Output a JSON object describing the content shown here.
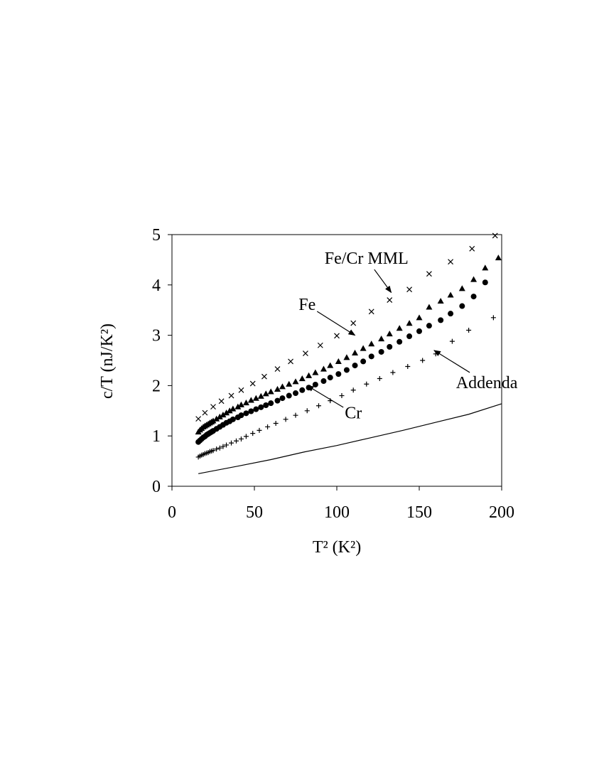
{
  "chart_data": {
    "type": "scatter",
    "title": "",
    "xlabel": "T² (K²)",
    "ylabel": "c/T (nJ/K²)",
    "xlim": [
      0,
      200
    ],
    "ylim": [
      0,
      5
    ],
    "xticks": [
      "0",
      "50",
      "100",
      "150",
      "200"
    ],
    "yticks": [
      "0",
      "1",
      "2",
      "3",
      "4",
      "5"
    ],
    "grid": false,
    "legend": "none",
    "series": [
      {
        "name": "Fe/Cr MML",
        "marker": "x",
        "x": [
          16,
          20,
          25,
          30,
          36,
          42,
          49,
          56,
          64,
          72,
          81,
          90,
          100,
          110,
          121,
          132,
          144,
          156,
          169,
          182,
          196
        ],
        "y": [
          1.34,
          1.46,
          1.58,
          1.69,
          1.8,
          1.91,
          2.04,
          2.18,
          2.33,
          2.48,
          2.64,
          2.8,
          2.99,
          3.24,
          3.47,
          3.7,
          3.91,
          4.22,
          4.46,
          4.72,
          4.98
        ]
      },
      {
        "name": "Fe",
        "marker": "triangle",
        "x": [
          16,
          17,
          18,
          19,
          20,
          21,
          22,
          23,
          24,
          25,
          27,
          29,
          31,
          33,
          35,
          37,
          40,
          42,
          45,
          48,
          51,
          54,
          57,
          60,
          64,
          67,
          71,
          75,
          79,
          83,
          87,
          92,
          96,
          101,
          106,
          111,
          116,
          121,
          127,
          132,
          138,
          144,
          150,
          156,
          163,
          169,
          176,
          183,
          190,
          198
        ],
        "y": [
          1.08,
          1.12,
          1.15,
          1.18,
          1.2,
          1.22,
          1.24,
          1.26,
          1.28,
          1.3,
          1.34,
          1.38,
          1.42,
          1.46,
          1.5,
          1.54,
          1.58,
          1.62,
          1.66,
          1.71,
          1.75,
          1.79,
          1.84,
          1.88,
          1.93,
          1.98,
          2.03,
          2.08,
          2.14,
          2.2,
          2.26,
          2.33,
          2.4,
          2.48,
          2.56,
          2.65,
          2.74,
          2.83,
          2.93,
          3.03,
          3.14,
          3.24,
          3.35,
          3.56,
          3.68,
          3.8,
          3.93,
          4.11,
          4.34,
          4.54
        ]
      },
      {
        "name": "Cr",
        "marker": "circle",
        "x": [
          16,
          17,
          18,
          19,
          20,
          21,
          22,
          23,
          24,
          25,
          27,
          29,
          31,
          33,
          35,
          37,
          40,
          42,
          45,
          48,
          51,
          54,
          57,
          60,
          64,
          67,
          71,
          75,
          79,
          83,
          87,
          92,
          96,
          101,
          106,
          111,
          116,
          121,
          127,
          132,
          138,
          144,
          150,
          156,
          163,
          169,
          176,
          183,
          190
        ],
        "y": [
          0.88,
          0.91,
          0.94,
          0.97,
          0.99,
          1.02,
          1.04,
          1.06,
          1.08,
          1.1,
          1.14,
          1.18,
          1.22,
          1.26,
          1.29,
          1.33,
          1.37,
          1.41,
          1.45,
          1.49,
          1.53,
          1.57,
          1.61,
          1.65,
          1.7,
          1.75,
          1.8,
          1.85,
          1.91,
          1.96,
          2.02,
          2.09,
          2.16,
          2.23,
          2.31,
          2.4,
          2.48,
          2.58,
          2.67,
          2.77,
          2.87,
          2.98,
          3.08,
          3.19,
          3.3,
          3.43,
          3.58,
          3.77,
          4.05
        ]
      },
      {
        "name": "Addenda",
        "marker": "plus",
        "x": [
          16,
          17,
          18,
          19,
          20,
          21,
          22,
          23,
          24,
          25,
          27,
          29,
          31,
          33,
          36,
          39,
          42,
          45,
          49,
          53,
          58,
          63,
          69,
          75,
          82,
          89,
          96,
          103,
          110,
          118,
          126,
          134,
          143,
          152,
          160,
          170,
          180,
          195
        ],
        "y": [
          0.58,
          0.6,
          0.62,
          0.63,
          0.65,
          0.66,
          0.67,
          0.69,
          0.7,
          0.71,
          0.74,
          0.76,
          0.79,
          0.82,
          0.86,
          0.9,
          0.94,
          0.99,
          1.05,
          1.11,
          1.18,
          1.25,
          1.33,
          1.41,
          1.5,
          1.6,
          1.7,
          1.8,
          1.91,
          2.03,
          2.14,
          2.26,
          2.38,
          2.5,
          2.63,
          2.88,
          3.1,
          3.35
        ]
      },
      {
        "name": "",
        "marker": "line",
        "x": [
          16,
          40,
          60,
          80,
          100,
          120,
          140,
          160,
          180,
          200
        ],
        "y": [
          0.25,
          0.4,
          0.53,
          0.68,
          0.81,
          0.96,
          1.11,
          1.27,
          1.43,
          1.64
        ]
      }
    ],
    "annotations": [
      {
        "text": "Fe/Cr MML",
        "tx": 118,
        "ty": 4.42,
        "ax": 133,
        "ay": 3.85
      },
      {
        "text": "Fe",
        "tx": 82,
        "ty": 3.5,
        "ax": 111,
        "ay": 3.0
      },
      {
        "text": "Cr",
        "tx": 110,
        "ty": 1.35,
        "ax": 82,
        "ay": 2.0
      },
      {
        "text": "Addenda",
        "tx": 191,
        "ty": 1.95,
        "ax": 159,
        "ay": 2.7
      }
    ]
  }
}
